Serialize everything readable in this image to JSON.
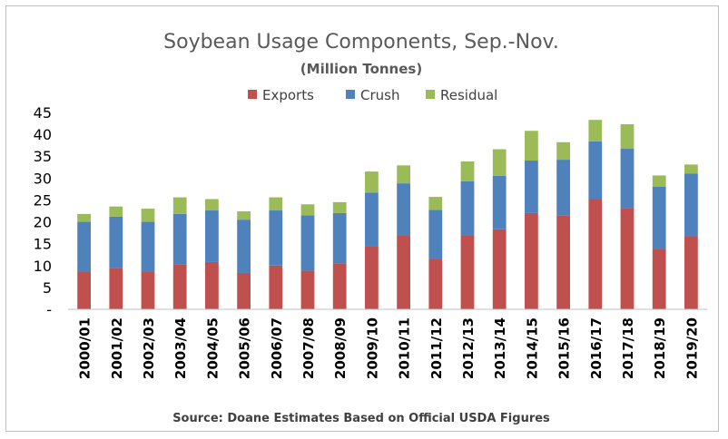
{
  "chart_data": {
    "type": "bar",
    "stacked": true,
    "title": "Soybean Usage Components, Sep.-Nov.",
    "subtitle": "(Million Tonnes)",
    "source": "Source: Doane Estimates Based on Official USDA Figures",
    "legend_position": "top",
    "grid": false,
    "ylim": [
      0,
      45
    ],
    "yticks": [
      "-",
      "5",
      "10",
      "15",
      "20",
      "25",
      "30",
      "35",
      "40",
      "45"
    ],
    "categories": [
      "2000/01",
      "2001/02",
      "2002/03",
      "2003/04",
      "2004/05",
      "2005/06",
      "2006/07",
      "2007/08",
      "2008/09",
      "2009/10",
      "2010/11",
      "2011/12",
      "2012/13",
      "2013/14",
      "2014/15",
      "2015/16",
      "2016/17",
      "2017/18",
      "2018/19",
      "2019/20"
    ],
    "series": [
      {
        "name": "Exports",
        "color": "#c0504d",
        "values": [
          8.5,
          9.5,
          8.5,
          10.3,
          10.8,
          8.3,
          10.0,
          8.8,
          10.5,
          14.5,
          16.8,
          11.5,
          16.8,
          18.3,
          22.0,
          21.5,
          25.2,
          23.2,
          13.8,
          16.7
        ]
      },
      {
        "name": "Crush",
        "color": "#4f81bd",
        "values": [
          11.5,
          11.7,
          11.5,
          11.5,
          11.8,
          12.2,
          12.6,
          12.7,
          11.5,
          12.2,
          12.0,
          11.2,
          12.5,
          12.2,
          12.0,
          12.7,
          13.2,
          13.5,
          14.2,
          14.3
        ]
      },
      {
        "name": "Residual",
        "color": "#9bbb59",
        "values": [
          1.8,
          2.3,
          3.0,
          3.8,
          2.6,
          1.9,
          3.0,
          2.5,
          2.5,
          4.8,
          4.1,
          3.0,
          4.5,
          6.1,
          6.8,
          4.0,
          4.9,
          5.6,
          2.6,
          2.1
        ]
      }
    ]
  }
}
